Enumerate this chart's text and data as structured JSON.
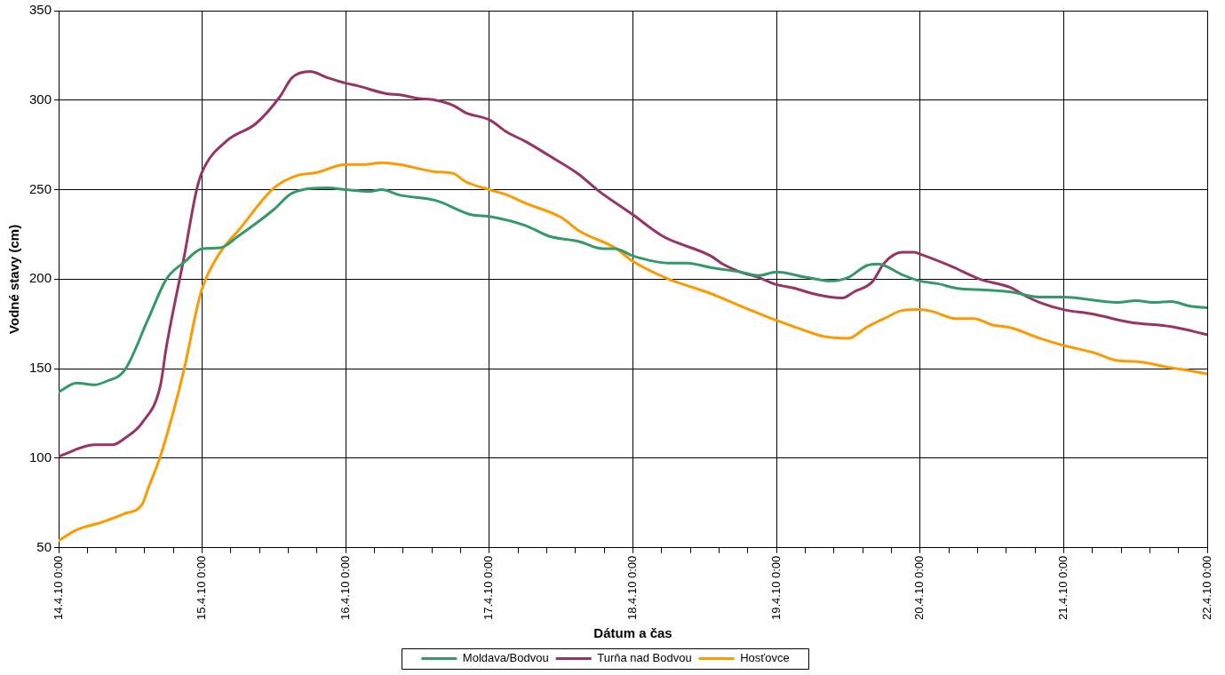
{
  "chart_data": {
    "type": "line",
    "xlabel": "Dátum a čas",
    "ylabel": "Vodné stavy (cm)",
    "xlim": [
      "--04-14T00:00",
      "--04-22T00:00"
    ],
    "xticks": [
      {
        "value": "--04-14T00:00",
        "label": "14.4.10 0:00"
      },
      {
        "value": "--04-14T04:48",
        "label": null
      },
      {
        "value": "--04-14T09:36",
        "label": null
      },
      {
        "value": "--04-14T14:24",
        "label": null
      },
      {
        "value": "--04-14T19:12",
        "label": null
      },
      {
        "value": "--04-15T00:00",
        "label": "15.4.10 0:00"
      },
      {
        "value": "--04-15T04:48",
        "label": null
      },
      {
        "value": "--04-15T09:36",
        "label": null
      },
      {
        "value": "--04-15T14:24",
        "label": null
      },
      {
        "value": "--04-15T19:12",
        "label": null
      },
      {
        "value": "--04-16T00:00",
        "label": "16.4.10 0:00"
      },
      {
        "value": "--04-16T04:48",
        "label": null
      },
      {
        "value": "--04-16T09:36",
        "label": null
      },
      {
        "value": "--04-16T14:24",
        "label": null
      },
      {
        "value": "--04-16T19:12",
        "label": null
      },
      {
        "value": "--04-17T00:00",
        "label": "17.4.10 0:00"
      },
      {
        "value": "--04-17T04:48",
        "label": null
      },
      {
        "value": "--04-17T09:36",
        "label": null
      },
      {
        "value": "--04-17T14:24",
        "label": null
      },
      {
        "value": "--04-17T19:12",
        "label": null
      },
      {
        "value": "--04-18T00:00",
        "label": "18.4.10 0:00"
      },
      {
        "value": "--04-18T04:48",
        "label": null
      },
      {
        "value": "--04-18T09:36",
        "label": null
      },
      {
        "value": "--04-18T14:24",
        "label": null
      },
      {
        "value": "--04-18T19:12",
        "label": null
      },
      {
        "value": "--04-19T00:00",
        "label": "19.4.10 0:00"
      },
      {
        "value": "--04-19T04:48",
        "label": null
      },
      {
        "value": "--04-19T09:36",
        "label": null
      },
      {
        "value": "--04-19T14:24",
        "label": null
      },
      {
        "value": "--04-19T19:12",
        "label": null
      },
      {
        "value": "--04-20T00:00",
        "label": "20.4.10 0:00"
      },
      {
        "value": "--04-20T04:48",
        "label": null
      },
      {
        "value": "--04-20T09:36",
        "label": null
      },
      {
        "value": "--04-20T14:24",
        "label": null
      },
      {
        "value": "--04-20T19:12",
        "label": null
      },
      {
        "value": "--04-21T00:00",
        "label": "21.4.10 0:00"
      },
      {
        "value": "--04-21T04:48",
        "label": null
      },
      {
        "value": "--04-21T09:36",
        "label": null
      },
      {
        "value": "--04-21T14:24",
        "label": null
      },
      {
        "value": "--04-21T19:12",
        "label": null
      },
      {
        "value": "--04-22T00:00",
        "label": "22.4.10 0:00"
      }
    ],
    "ylim": [
      50,
      350
    ],
    "yticks": [
      50,
      100,
      150,
      200,
      250,
      300,
      350
    ],
    "grid": true,
    "legend": "bottom",
    "marker": "none",
    "line_style": "solid",
    "series": [
      {
        "name": "Moldava/Bodvou",
        "color": "#339966",
        "x": [
          "--04-14T00:00",
          "--04-14T03:00",
          "--04-14T06:00",
          "--04-14T08:00",
          "--04-14T11:00",
          "--04-14T15:00",
          "--04-14T18:00",
          "--04-14T21:00",
          "--04-15T00:00",
          "--04-15T03:00",
          "--04-15T06:00",
          "--04-15T12:00",
          "--04-15T15:00",
          "--04-15T21:00",
          "--04-16T00:00",
          "--04-16T04:00",
          "--04-16T06:00",
          "--04-16T09:00",
          "--04-16T15:00",
          "--04-16T21:00",
          "--04-17T00:00",
          "--04-17T06:00",
          "--04-17T10:00",
          "--04-17T15:00",
          "--04-17T19:00",
          "--04-17T21:00",
          "--04-18T00:00",
          "--04-18T06:00",
          "--04-18T09:00",
          "--04-18T13:00",
          "--04-18T18:00",
          "--04-18T21:00",
          "--04-19T00:00",
          "--04-19T05:00",
          "--04-19T09:00",
          "--04-19T12:00",
          "--04-19T15:00",
          "--04-19T17:00",
          "--04-19T21:00",
          "--04-20T00:00",
          "--04-20T03:00",
          "--04-20T06:00",
          "--04-20T11:00",
          "--04-20T15:00",
          "--04-20T20:00",
          "--04-21T00:00",
          "--04-21T09:00",
          "--04-21T12:00",
          "--04-21T15:00",
          "--04-21T18:00",
          "--04-21T21:00",
          "--04-22T00:00"
        ],
        "values": [
          137,
          142,
          141,
          143,
          149,
          178,
          200,
          209.5,
          217,
          217.5,
          224,
          239,
          248,
          251,
          250,
          249,
          250,
          247,
          244,
          236,
          235,
          230,
          224,
          221,
          217,
          217,
          213,
          209,
          209,
          206.5,
          204,
          202,
          204,
          201,
          199,
          201,
          207.5,
          208.5,
          202.5,
          199,
          197.5,
          195,
          194,
          193,
          190,
          190,
          187,
          188,
          187,
          187.5,
          185,
          184
        ]
      },
      {
        "name": "Turňa nad Bodvou",
        "color": "#993366",
        "x": [
          "--04-14T00:00",
          "--04-14T06:00",
          "--04-14T09:00",
          "--04-14T11:00",
          "--04-14T14:00",
          "--04-14T17:00",
          "--04-14T18:00",
          "--04-14T21:00",
          "--04-14T23:00",
          "--04-15T00:00",
          "--04-15T04:00",
          "--04-15T09:00",
          "--04-15T13:00",
          "--04-15T15:00",
          "--04-15T18:00",
          "--04-15T21:00",
          "--04-16T00:00",
          "--04-16T02:00",
          "--04-16T07:00",
          "--04-16T09:00",
          "--04-16T12:00",
          "--04-16T15:00",
          "--04-16T18:00",
          "--04-16T20:00",
          "--04-17T00:00",
          "--04-17T03:00",
          "--04-17T06:00",
          "--04-17T10:00",
          "--04-17T15:00",
          "--04-17T18:00",
          "--04-18T00:00",
          "--04-18T05:00",
          "--04-18T13:00",
          "--04-18T15:00",
          "--04-18T18:00",
          "--04-18T21:00",
          "--04-19T00:00",
          "--04-19T03:00",
          "--04-19T06:00",
          "--04-19T09:00",
          "--04-19T11:00",
          "--04-19T13:00",
          "--04-19T16:00",
          "--04-19T18:00",
          "--04-19T21:00",
          "--04-19T23:00",
          "--04-20T00:00",
          "--04-20T05:00",
          "--04-20T10:00",
          "--04-20T15:00",
          "--04-20T18:00",
          "--04-20T20:00",
          "--04-21T00:00",
          "--04-21T05:00",
          "--04-21T11:00",
          "--04-21T18:00",
          "--04-22T00:00"
        ],
        "values": [
          101,
          107.5,
          107.5,
          111,
          120,
          140.5,
          162,
          213,
          249,
          260,
          277,
          287,
          302,
          312.5,
          316,
          312.5,
          309.5,
          308,
          303.5,
          303,
          301,
          300,
          297,
          293,
          289,
          282,
          277,
          269,
          258.5,
          250,
          236,
          224,
          213,
          208.5,
          204,
          201,
          197,
          195,
          192,
          190,
          189.5,
          193,
          198.5,
          209,
          215,
          215,
          214,
          207.5,
          200,
          195.5,
          190,
          187,
          183,
          180.5,
          176,
          173.5,
          169
        ]
      },
      {
        "name": "Hosťovce",
        "color": "#ff9900",
        "x": [
          "--04-14T00:00",
          "--04-14T03:00",
          "--04-14T07:00",
          "--04-14T11:00",
          "--04-14T14:00",
          "--04-14T15:00",
          "--04-14T17:00",
          "--04-14T21:00",
          "--04-14T23:00",
          "--04-15T00:00",
          "--04-15T03:00",
          "--04-15T06:00",
          "--04-15T12:00",
          "--04-15T16:00",
          "--04-15T19:00",
          "--04-16T00:00",
          "--04-16T03:00",
          "--04-16T06:00",
          "--04-16T09:00",
          "--04-16T15:00",
          "--04-16T18:00",
          "--04-16T20:00",
          "--04-17T00:00",
          "--04-17T03:00",
          "--04-17T06:00",
          "--04-17T12:00",
          "--04-17T15:00",
          "--04-17T21:00",
          "--04-18T00:00",
          "--04-18T06:00",
          "--04-18T09:00",
          "--04-18T13:00",
          "--04-18T18:00",
          "--04-19T00:00",
          "--04-19T05:00",
          "--04-19T08:00",
          "--04-19T12:00",
          "--04-19T15:00",
          "--04-19T18:00",
          "--04-19T21:00",
          "--04-20T00:00",
          "--04-20T02:00",
          "--04-20T06:00",
          "--04-20T09:00",
          "--04-20T12:00",
          "--04-20T15:00",
          "--04-20T20:00",
          "--04-21T00:00",
          "--04-21T05:00",
          "--04-21T09:00",
          "--04-21T12:00",
          "--04-21T18:00",
          "--04-21T21:00",
          "--04-22T00:00"
        ],
        "values": [
          54,
          60,
          64,
          69,
          74.5,
          83.5,
          101,
          150,
          182,
          195,
          215,
          227,
          251,
          258,
          259.5,
          264,
          264,
          265,
          264,
          260,
          259,
          254.5,
          250,
          247,
          242.5,
          234.5,
          227,
          217.5,
          210,
          200,
          196.5,
          192,
          185,
          177,
          171,
          168,
          167,
          173,
          178,
          182.5,
          183,
          182,
          178,
          178,
          174.5,
          173,
          167,
          163,
          159,
          154.5,
          154,
          150.5,
          149,
          147
        ]
      }
    ]
  }
}
